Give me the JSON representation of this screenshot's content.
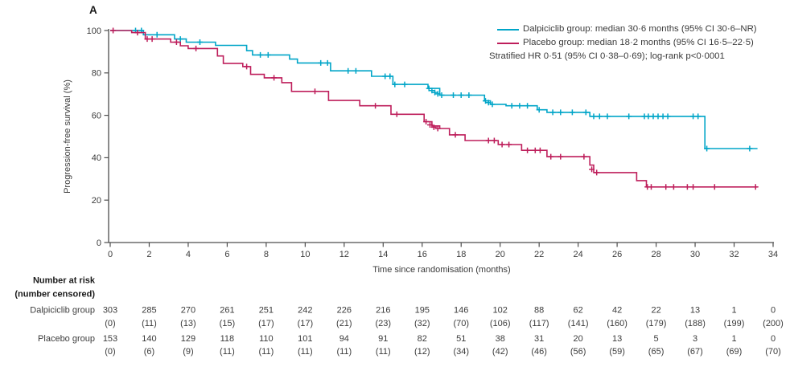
{
  "panel_label": "A",
  "legend": {
    "entries": [
      {
        "label": "Dalpiciclib group: median 30·6 months (95% CI 30·6–NR)",
        "color": "#00A5C8"
      },
      {
        "label": "Placebo group: median 18·2 months (95% CI 16·5–22·5)",
        "color": "#BE1E5B"
      }
    ],
    "annotation": "Stratified HR 0·51 (95% CI 0·38–0·69); log-rank p<0·0001"
  },
  "chart_data": {
    "type": "line",
    "subtype": "kaplan-meier-step",
    "xlabel": "Time since randomisation (months)",
    "ylabel": "Progression-free survival (%)",
    "xlim": [
      0,
      34
    ],
    "ylim": [
      0,
      100
    ],
    "xticks": [
      0,
      2,
      4,
      6,
      8,
      10,
      12,
      14,
      16,
      18,
      20,
      22,
      24,
      26,
      28,
      30,
      32,
      34
    ],
    "yticks": [
      0,
      20,
      40,
      60,
      80,
      100
    ],
    "grid": false,
    "legend_position": "top-right",
    "series": [
      {
        "name": "Dalpiciclib group",
        "color": "#00A5C8",
        "steps": [
          [
            0,
            100
          ],
          [
            1.7,
            98
          ],
          [
            3.3,
            96
          ],
          [
            3.9,
            94.5
          ],
          [
            5.4,
            93
          ],
          [
            7.0,
            90.5
          ],
          [
            7.3,
            88.5
          ],
          [
            9.2,
            86.5
          ],
          [
            9.6,
            84.7
          ],
          [
            11.3,
            81
          ],
          [
            13.4,
            78.4
          ],
          [
            14.5,
            74.6
          ],
          [
            16.3,
            72.7
          ],
          [
            16.9,
            69.5
          ],
          [
            19.2,
            66.8
          ],
          [
            19.5,
            65.2
          ],
          [
            20.3,
            64.5
          ],
          [
            21.9,
            62.6
          ],
          [
            22.4,
            61.4
          ],
          [
            24.6,
            59.5
          ],
          [
            30.5,
            44.3
          ],
          [
            33.2,
            44.3
          ]
        ],
        "censors": [
          [
            1.3,
            100
          ],
          [
            1.6,
            100
          ],
          [
            2.4,
            98
          ],
          [
            3.6,
            96
          ],
          [
            4.6,
            94.5
          ],
          [
            7.7,
            88.5
          ],
          [
            8.1,
            88.5
          ],
          [
            10.8,
            84.7
          ],
          [
            11.15,
            84.7
          ],
          [
            12.2,
            81
          ],
          [
            12.6,
            81
          ],
          [
            14.1,
            78.4
          ],
          [
            14.35,
            78.4
          ],
          [
            14.6,
            74.6
          ],
          [
            15.1,
            74.6
          ],
          [
            16.35,
            72.7
          ],
          [
            16.5,
            71.7
          ],
          [
            16.65,
            70.8
          ],
          [
            16.8,
            70.1
          ],
          [
            17.0,
            69.5
          ],
          [
            17.6,
            69.5
          ],
          [
            18.0,
            69.5
          ],
          [
            18.4,
            69.5
          ],
          [
            19.25,
            66.8
          ],
          [
            19.4,
            66
          ],
          [
            19.6,
            65.2
          ],
          [
            20.6,
            64.5
          ],
          [
            21.0,
            64.5
          ],
          [
            21.4,
            64.5
          ],
          [
            22.0,
            62.6
          ],
          [
            22.7,
            61.4
          ],
          [
            23.1,
            61.4
          ],
          [
            23.7,
            61.4
          ],
          [
            24.4,
            61.4
          ],
          [
            24.8,
            59.5
          ],
          [
            25.1,
            59.5
          ],
          [
            25.5,
            59.5
          ],
          [
            26.6,
            59.5
          ],
          [
            27.4,
            59.5
          ],
          [
            27.6,
            59.5
          ],
          [
            27.85,
            59.5
          ],
          [
            28.1,
            59.5
          ],
          [
            28.35,
            59.5
          ],
          [
            28.6,
            59.5
          ],
          [
            29.9,
            59.5
          ],
          [
            30.15,
            59.5
          ],
          [
            30.6,
            44.3
          ],
          [
            32.8,
            44.3
          ]
        ]
      },
      {
        "name": "Placebo group",
        "color": "#BE1E5B",
        "steps": [
          [
            0,
            100
          ],
          [
            1.1,
            99
          ],
          [
            1.8,
            96
          ],
          [
            3.1,
            94.5
          ],
          [
            3.6,
            92.8
          ],
          [
            4.0,
            91.5
          ],
          [
            5.5,
            88
          ],
          [
            5.8,
            84.5
          ],
          [
            6.8,
            83
          ],
          [
            7.2,
            79.3
          ],
          [
            7.9,
            77.7
          ],
          [
            8.8,
            75.4
          ],
          [
            9.3,
            71.3
          ],
          [
            11.2,
            67
          ],
          [
            12.8,
            64.5
          ],
          [
            14.4,
            60.5
          ],
          [
            16.1,
            57
          ],
          [
            16.5,
            55
          ],
          [
            16.9,
            53.8
          ],
          [
            17.4,
            50.8
          ],
          [
            18.2,
            48.1
          ],
          [
            19.9,
            46.2
          ],
          [
            21.1,
            43.5
          ],
          [
            22.4,
            40.5
          ],
          [
            24.6,
            36.5
          ],
          [
            24.8,
            33
          ],
          [
            27.0,
            29.2
          ],
          [
            27.5,
            26.2
          ],
          [
            33.2,
            26.2
          ]
        ],
        "censors": [
          [
            0.15,
            100
          ],
          [
            1.4,
            99
          ],
          [
            1.9,
            96
          ],
          [
            2.15,
            96
          ],
          [
            3.4,
            94.5
          ],
          [
            4.4,
            91.5
          ],
          [
            7.0,
            83
          ],
          [
            8.4,
            77.7
          ],
          [
            10.5,
            71.3
          ],
          [
            13.6,
            64.5
          ],
          [
            14.7,
            60.5
          ],
          [
            16.2,
            57
          ],
          [
            16.4,
            55.5
          ],
          [
            16.6,
            54.4
          ],
          [
            16.8,
            53.8
          ],
          [
            17.7,
            50.8
          ],
          [
            19.4,
            48.1
          ],
          [
            19.7,
            48.1
          ],
          [
            20.1,
            46.2
          ],
          [
            20.45,
            46.2
          ],
          [
            21.4,
            43.5
          ],
          [
            21.8,
            43.5
          ],
          [
            22.05,
            43.5
          ],
          [
            22.6,
            40.5
          ],
          [
            23.1,
            40.5
          ],
          [
            24.3,
            40.5
          ],
          [
            24.7,
            34.5
          ],
          [
            24.95,
            33
          ],
          [
            27.55,
            26.2
          ],
          [
            27.75,
            26.2
          ],
          [
            28.5,
            26.2
          ],
          [
            28.9,
            26.2
          ],
          [
            29.6,
            26.2
          ],
          [
            29.9,
            26.2
          ],
          [
            31.0,
            26.2
          ],
          [
            33.1,
            26.2
          ]
        ]
      }
    ]
  },
  "risk_table": {
    "header_line1": "Number at risk",
    "header_line2": "(number censored)",
    "times": [
      0,
      2,
      4,
      6,
      8,
      10,
      12,
      14,
      16,
      18,
      20,
      22,
      24,
      26,
      28,
      30,
      32,
      34
    ],
    "rows": [
      {
        "group": "Dalpiciclib group",
        "at_risk": [
          303,
          285,
          270,
          261,
          251,
          242,
          226,
          216,
          195,
          146,
          102,
          88,
          62,
          42,
          22,
          13,
          1,
          0
        ],
        "censored": [
          "(0)",
          "(11)",
          "(13)",
          "(15)",
          "(17)",
          "(17)",
          "(21)",
          "(23)",
          "(32)",
          "(70)",
          "(106)",
          "(117)",
          "(141)",
          "(160)",
          "(179)",
          "(188)",
          "(199)",
          "(200)"
        ]
      },
      {
        "group": "Placebo group",
        "at_risk": [
          153,
          140,
          129,
          118,
          110,
          101,
          94,
          91,
          82,
          51,
          38,
          31,
          20,
          13,
          5,
          3,
          1,
          0
        ],
        "censored": [
          "(0)",
          "(6)",
          "(9)",
          "(11)",
          "(11)",
          "(11)",
          "(11)",
          "(11)",
          "(12)",
          "(34)",
          "(42)",
          "(46)",
          "(56)",
          "(59)",
          "(65)",
          "(67)",
          "(69)",
          "(70)"
        ]
      }
    ]
  },
  "colors": {
    "axis": "#4d4d4d",
    "text": "#3b3b3b"
  }
}
